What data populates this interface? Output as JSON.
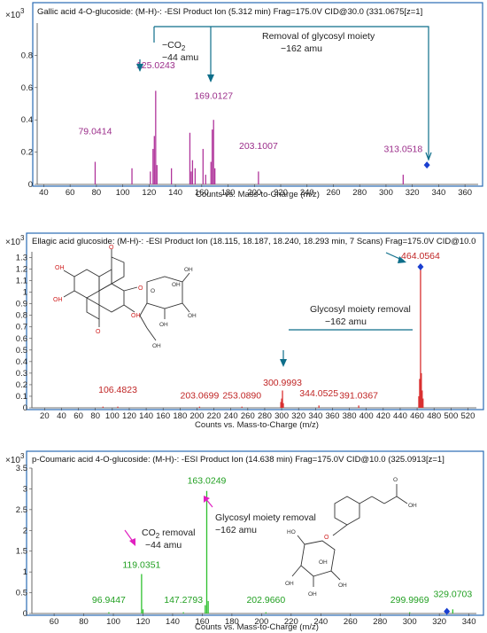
{
  "chart_data": [
    {
      "type": "bar",
      "title": "Gallic acid 4-O-glucoside: (M-H)-: -ESI Product Ion (5.312 min) Frag=175.0V CID@30.0 (331.0675[z=1]",
      "scale_label": "×10",
      "scale_exp": "3",
      "xlabel": "Counts vs. Mass-to-Charge (m/z)",
      "xlim": [
        35,
        370
      ],
      "ylim": [
        0,
        1.0
      ],
      "xticks": [
        40,
        60,
        80,
        100,
        120,
        140,
        160,
        180,
        200,
        220,
        240,
        260,
        280,
        300,
        320,
        340,
        360
      ],
      "yticks": [
        0,
        0.2,
        0.4,
        0.6,
        0.8
      ],
      "color": "#b0359b",
      "label_color": "#9b2d8a",
      "peaks": [
        {
          "mz": 79.04,
          "int": 0.14
        },
        {
          "mz": 107.0,
          "int": 0.1
        },
        {
          "mz": 121.0,
          "int": 0.08
        },
        {
          "mz": 123.0,
          "int": 0.22
        },
        {
          "mz": 124.0,
          "int": 0.3
        },
        {
          "mz": 125.02,
          "int": 0.58
        },
        {
          "mz": 126.0,
          "int": 0.12
        },
        {
          "mz": 137.0,
          "int": 0.1
        },
        {
          "mz": 151.0,
          "int": 0.32
        },
        {
          "mz": 152.0,
          "int": 0.08
        },
        {
          "mz": 153.0,
          "int": 0.15
        },
        {
          "mz": 155.0,
          "int": 0.1
        },
        {
          "mz": 161.0,
          "int": 0.22
        },
        {
          "mz": 163.0,
          "int": 0.06
        },
        {
          "mz": 167.0,
          "int": 0.14
        },
        {
          "mz": 168.0,
          "int": 0.34
        },
        {
          "mz": 169.01,
          "int": 0.4
        },
        {
          "mz": 170.0,
          "int": 0.1
        },
        {
          "mz": 203.1,
          "int": 0.08
        },
        {
          "mz": 313.05,
          "int": 0.06
        }
      ],
      "labels": [
        {
          "text": "79.0414",
          "mz": 79.04,
          "y": 0.31
        },
        {
          "text": "125.0243",
          "mz": 125.02,
          "y": 0.72
        },
        {
          "text": "169.0127",
          "mz": 169.01,
          "y": 0.53
        },
        {
          "text": "203.1007",
          "mz": 203.1,
          "y": 0.22
        },
        {
          "text": "313.0518",
          "mz": 313.05,
          "y": 0.2
        }
      ],
      "precursor": {
        "mz": 331.07,
        "int": 0.12
      },
      "annotations": [
        {
          "text": "−CO",
          "sub": "2"
        },
        {
          "text": "−44 amu"
        },
        {
          "text": "Removal of glycosyl moiety"
        },
        {
          "text": "−162 amu"
        }
      ]
    },
    {
      "type": "bar",
      "title": "Ellagic acid glucoside: (M-H)-: -ESI Product Ion (18.115, 18.187, 18.240, 18.293     min, 7 Scans) Frag=175.0V CID@10.0",
      "scale_label": "×10",
      "scale_exp": "3",
      "xlabel": "Counts vs. Mass-to-Charge (m/z)",
      "xlim": [
        5,
        530
      ],
      "ylim": [
        0,
        1.35
      ],
      "xticks": [
        20,
        40,
        60,
        80,
        100,
        120,
        140,
        160,
        180,
        200,
        220,
        240,
        260,
        280,
        300,
        320,
        340,
        360,
        380,
        400,
        420,
        440,
        460,
        480,
        500,
        520
      ],
      "yticks": [
        0,
        0.1,
        0.2,
        0.3,
        0.4,
        0.5,
        0.6,
        0.7,
        0.8,
        0.9,
        1,
        1.1,
        1.2,
        1.3
      ],
      "color": "#d93030",
      "label_color": "#c02525",
      "peaks": [
        {
          "mz": 89.0,
          "int": 0.01
        },
        {
          "mz": 106.48,
          "int": 0.01
        },
        {
          "mz": 203.07,
          "int": 0.01
        },
        {
          "mz": 253.09,
          "int": 0.01
        },
        {
          "mz": 299.0,
          "int": 0.05
        },
        {
          "mz": 300.0,
          "int": 0.08
        },
        {
          "mz": 300.99,
          "int": 0.15
        },
        {
          "mz": 302.0,
          "int": 0.04
        },
        {
          "mz": 344.05,
          "int": 0.02
        },
        {
          "mz": 391.04,
          "int": 0.02
        },
        {
          "mz": 462.0,
          "int": 0.1
        },
        {
          "mz": 463.0,
          "int": 0.25
        },
        {
          "mz": 464.06,
          "int": 1.2
        },
        {
          "mz": 465.0,
          "int": 0.3
        },
        {
          "mz": 466.0,
          "int": 0.15
        },
        {
          "mz": 467.0,
          "int": 0.08
        }
      ],
      "labels": [
        {
          "text": "106.4823",
          "mz": 106.48,
          "y": 0.13
        },
        {
          "text": "203.0699",
          "mz": 203.07,
          "y": 0.08
        },
        {
          "text": "253.0890",
          "mz": 253.09,
          "y": 0.08
        },
        {
          "text": "300.9993",
          "mz": 300.99,
          "y": 0.19
        },
        {
          "text": "344.0525",
          "mz": 344.05,
          "y": 0.1
        },
        {
          "text": "391.0367",
          "mz": 391.04,
          "y": 0.08
        },
        {
          "text": "464.0564",
          "mz": 464.06,
          "y": 1.29
        }
      ],
      "precursor": {
        "mz": 464.06,
        "int": 1.22
      },
      "annotations": [
        {
          "text": "Glycosyl  moiety removal"
        },
        {
          "text": "−162 amu"
        }
      ]
    },
    {
      "type": "bar",
      "title": "p-Coumaric acid 4-O-glucoside: (M-H)-: -ESI Product Ion (14.638 min) Frag=175.0V CID@10.0 (325.0913[z=1]",
      "scale_label": "×10",
      "scale_exp": "3",
      "xlabel": "Counts vs. Mass-to-Charge (m/z)",
      "xlim": [
        45,
        345
      ],
      "ylim": [
        0,
        3.5
      ],
      "xticks": [
        60,
        80,
        100,
        120,
        140,
        160,
        180,
        200,
        220,
        240,
        260,
        280,
        300,
        320,
        340
      ],
      "yticks": [
        0,
        0.5,
        1,
        1.5,
        2,
        2.5,
        3,
        3.5
      ],
      "color": "#2ec02e",
      "label_color": "#22a022",
      "peaks": [
        {
          "mz": 96.94,
          "int": 0.03
        },
        {
          "mz": 119.04,
          "int": 0.95
        },
        {
          "mz": 120.0,
          "int": 0.1
        },
        {
          "mz": 147.28,
          "int": 0.03
        },
        {
          "mz": 162.0,
          "int": 0.2
        },
        {
          "mz": 163.02,
          "int": 2.95
        },
        {
          "mz": 164.0,
          "int": 0.3
        },
        {
          "mz": 202.97,
          "int": 0.03
        },
        {
          "mz": 299.99,
          "int": 0.03
        },
        {
          "mz": 325.0,
          "int": 0.05
        },
        {
          "mz": 329.07,
          "int": 0.1
        }
      ],
      "labels": [
        {
          "text": "96.9447",
          "mz": 96.94,
          "y": 0.26
        },
        {
          "text": "119.0351",
          "mz": 119.04,
          "y": 1.1
        },
        {
          "text": "147.2793",
          "mz": 147.28,
          "y": 0.26
        },
        {
          "text": "163.0249",
          "mz": 163.02,
          "y": 3.13
        },
        {
          "text": "202.9660",
          "mz": 202.97,
          "y": 0.26
        },
        {
          "text": "299.9969",
          "mz": 299.99,
          "y": 0.26
        },
        {
          "text": "329.0703",
          "mz": 329.07,
          "y": 0.4
        }
      ],
      "precursor": {
        "mz": 325.09,
        "int": 0.05
      },
      "annotations": [
        {
          "text": "CO",
          "sub": "2",
          "tail": " removal"
        },
        {
          "text": "−44 amu"
        },
        {
          "text": "Glycosyl  moiety removal"
        },
        {
          "text": "−162 amu"
        }
      ]
    }
  ],
  "structures": {
    "ellagic_oh": "OH",
    "ellagic_o": "O",
    "coumaric_oh": "OH",
    "coumaric_o": "O",
    "ho": "HO"
  }
}
